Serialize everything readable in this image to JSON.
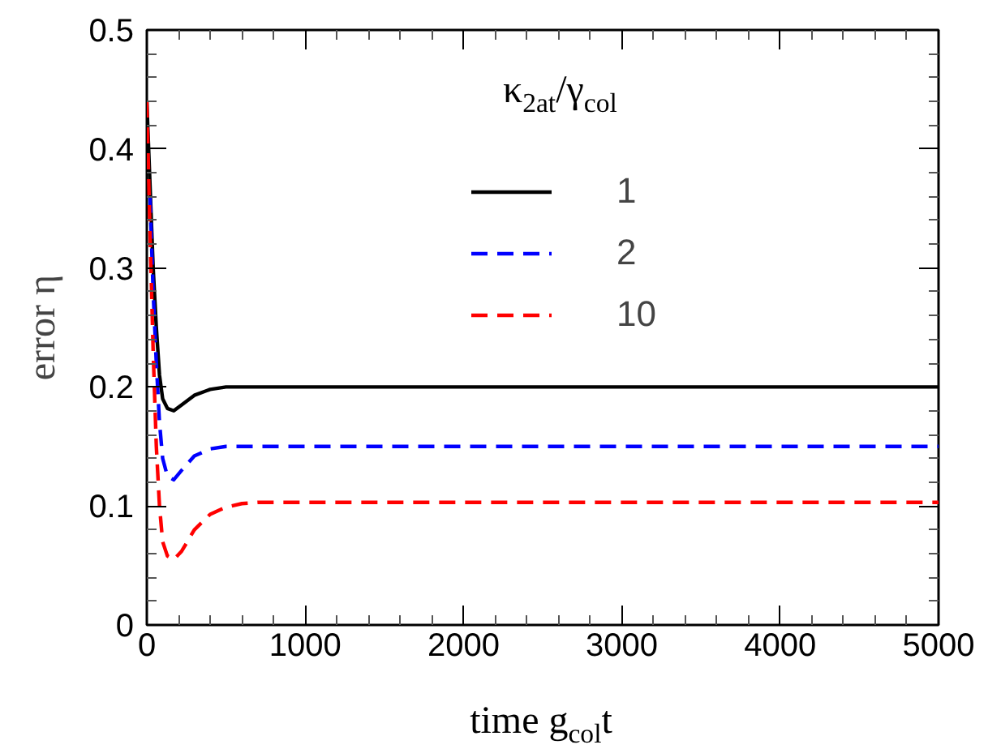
{
  "chart_data": {
    "type": "line",
    "xlabel": "time g$_{col}$t",
    "ylabel": "error η",
    "legend_title": "κ$_{2at}$/γ$_{col}$",
    "xlim": [
      0,
      5000
    ],
    "ylim": [
      0,
      0.5
    ],
    "xticks": [
      0,
      1000,
      2000,
      3000,
      4000,
      5000
    ],
    "yticks": [
      0,
      0.1,
      0.2,
      0.3,
      0.4,
      0.5
    ],
    "grid": false,
    "legend": "top right",
    "marker": "none",
    "series": [
      {
        "name": "1",
        "color": "#000000",
        "line_style": "solid",
        "x": [
          0,
          20,
          40,
          60,
          80,
          100,
          130,
          170,
          220,
          300,
          400,
          500,
          600,
          800,
          1000,
          2000,
          3000,
          4000,
          5000
        ],
        "values": [
          0.44,
          0.37,
          0.3,
          0.25,
          0.21,
          0.19,
          0.182,
          0.18,
          0.185,
          0.193,
          0.198,
          0.2,
          0.2,
          0.2,
          0.2,
          0.2,
          0.2,
          0.2,
          0.2
        ]
      },
      {
        "name": "2",
        "color": "#0000ff",
        "line_style": "dashed",
        "x": [
          20,
          40,
          60,
          80,
          100,
          130,
          170,
          220,
          300,
          400,
          500,
          600,
          800,
          1000,
          2000,
          3000,
          4000,
          5000
        ],
        "values": [
          0.36,
          0.28,
          0.22,
          0.17,
          0.14,
          0.125,
          0.122,
          0.13,
          0.142,
          0.148,
          0.15,
          0.15,
          0.15,
          0.15,
          0.15,
          0.15,
          0.15,
          0.15
        ]
      },
      {
        "name": "10",
        "color": "#ff0000",
        "line_style": "dashed",
        "x": [
          0,
          20,
          40,
          60,
          80,
          100,
          130,
          170,
          220,
          300,
          400,
          500,
          600,
          700,
          800,
          1000,
          2000,
          3000,
          4000,
          5000
        ],
        "values": [
          0.44,
          0.33,
          0.23,
          0.15,
          0.1,
          0.07,
          0.058,
          0.055,
          0.062,
          0.08,
          0.093,
          0.099,
          0.102,
          0.103,
          0.103,
          0.103,
          0.103,
          0.103,
          0.103,
          0.103
        ]
      }
    ]
  }
}
